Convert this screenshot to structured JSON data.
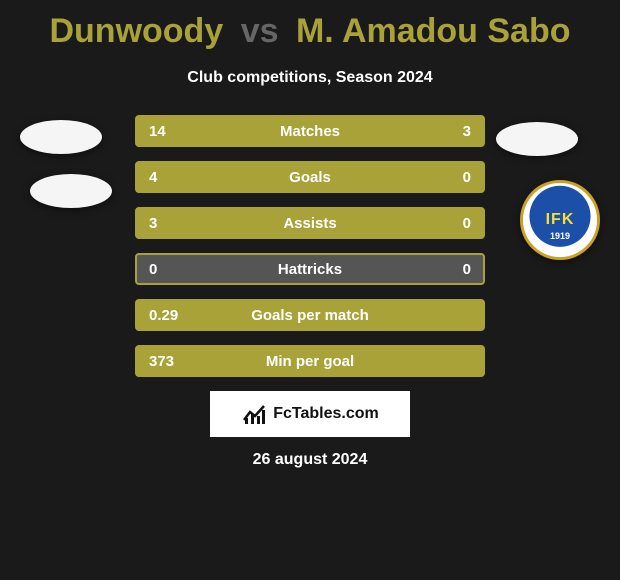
{
  "background_color": "#1a1a1a",
  "accent_color": "#a8a238",
  "muted_bar_color": "#555555",
  "text_color": "#ffffff",
  "title": {
    "player1": "Dunwoody",
    "vs": "vs",
    "player2": "M. Amadou Sabo",
    "player_color": "#a8a238",
    "vs_color": "#666666",
    "fontsize": 34
  },
  "subtitle": "Club competitions, Season 2024",
  "rows": [
    {
      "label": "Matches",
      "left": "14",
      "right": "3",
      "left_pct": 82,
      "right_pct": 18
    },
    {
      "label": "Goals",
      "left": "4",
      "right": "0",
      "left_pct": 100,
      "right_pct": 0
    },
    {
      "label": "Assists",
      "left": "3",
      "right": "0",
      "left_pct": 100,
      "right_pct": 0
    },
    {
      "label": "Hattricks",
      "left": "0",
      "right": "0",
      "left_pct": 0,
      "right_pct": 0
    },
    {
      "label": "Goals per match",
      "left": "0.29",
      "right": "",
      "left_pct": 100,
      "right_pct": 0
    },
    {
      "label": "Min per goal",
      "left": "373",
      "right": "",
      "left_pct": 100,
      "right_pct": 0
    }
  ],
  "right_club_badge": {
    "text": "IFK",
    "year": "1919",
    "ring_color": "#c9a227",
    "inner_color": "#1b4fa8"
  },
  "brand": "FcTables.com",
  "date": "26 august 2024"
}
